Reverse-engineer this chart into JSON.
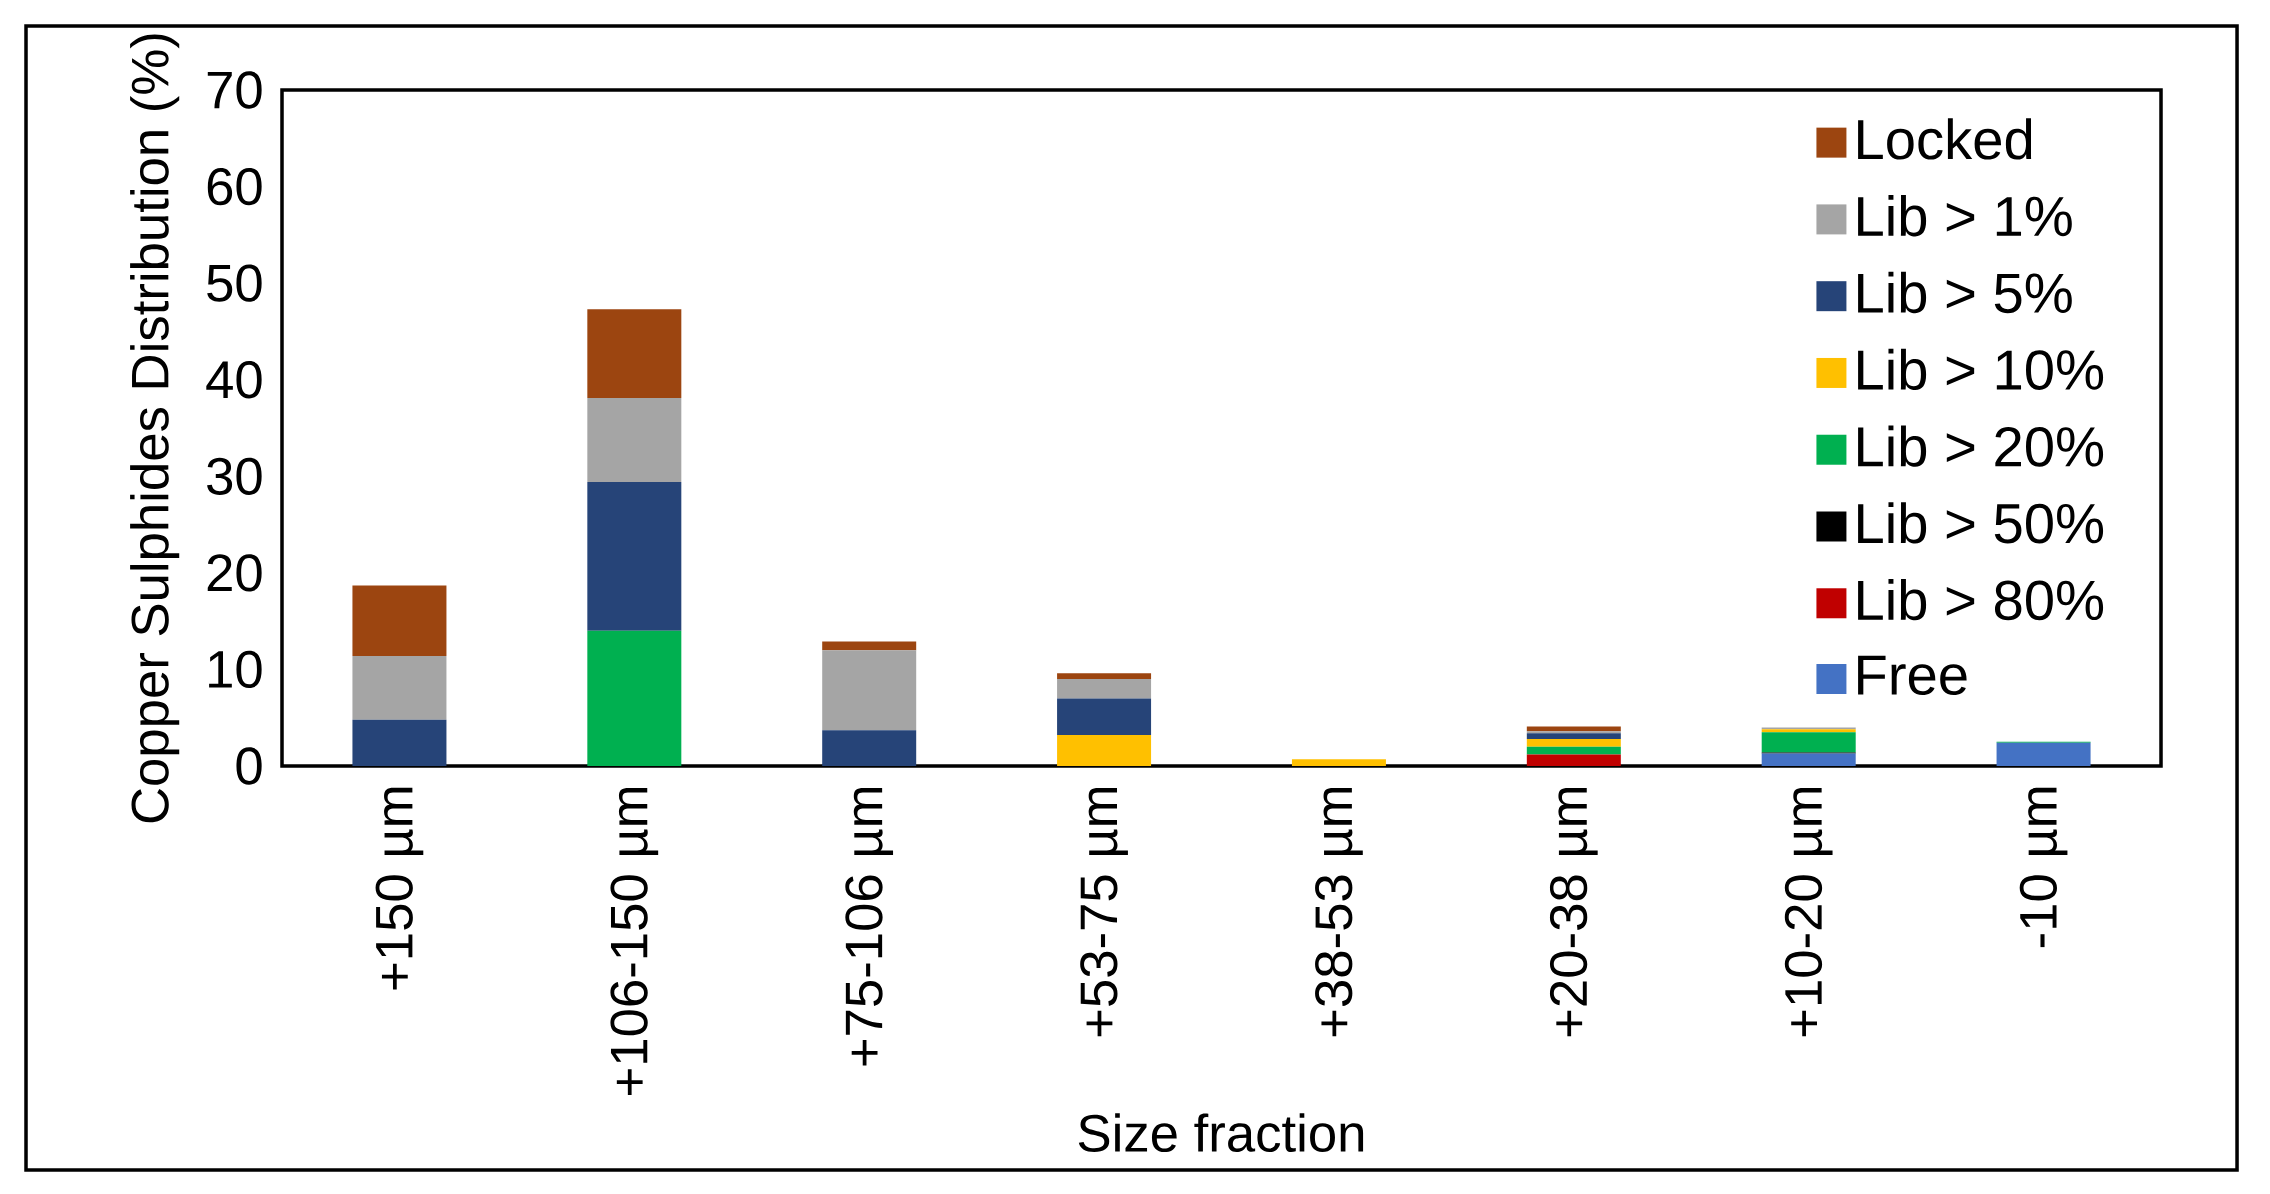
{
  "chart_data": {
    "type": "bar",
    "stacked": true,
    "xlabel": "Size fraction",
    "ylabel": "Copper Sulphides Distribution (%)",
    "categories": [
      "+150 µm",
      "+106-150 µm",
      "+75-106 µm",
      "+53-75 µm",
      "+38-53 µm",
      "+20-38 µm",
      "+10-20 µm",
      "-10 µm"
    ],
    "ylim": [
      0,
      70
    ],
    "yticks": [
      0,
      10,
      20,
      30,
      40,
      50,
      60,
      70
    ],
    "legend": "top right",
    "series": [
      {
        "name": "Free",
        "color": "#4472c4",
        "values": [
          0,
          0,
          0,
          0,
          0,
          0,
          1.3,
          2.4
        ]
      },
      {
        "name": "Lib > 80%",
        "color": "#c00000",
        "values": [
          0,
          0,
          0,
          0,
          0,
          1.2,
          0,
          0
        ]
      },
      {
        "name": "Lib > 50%",
        "color": "#000000",
        "values": [
          0,
          0,
          0,
          0,
          0,
          0,
          0.1,
          0
        ]
      },
      {
        "name": "Lib > 20%",
        "color": "#00b050",
        "values": [
          0,
          14.0,
          0,
          0,
          0,
          0.8,
          2.1,
          0.1
        ]
      },
      {
        "name": "Lib > 10%",
        "color": "#ffc000",
        "values": [
          0,
          0,
          0,
          3.2,
          0.7,
          0.8,
          0.3,
          0
        ]
      },
      {
        "name": "Lib > 5%",
        "color": "#264478",
        "values": [
          4.8,
          15.4,
          3.7,
          3.8,
          0,
          0.6,
          0,
          0
        ]
      },
      {
        "name": "Lib > 1%",
        "color": "#a5a5a5",
        "values": [
          6.6,
          8.7,
          8.3,
          2.0,
          0,
          0.2,
          0.2,
          0
        ]
      },
      {
        "name": "Locked",
        "color": "#9c4510",
        "values": [
          7.3,
          9.2,
          0.9,
          0.6,
          0,
          0.5,
          0,
          0
        ]
      }
    ]
  }
}
